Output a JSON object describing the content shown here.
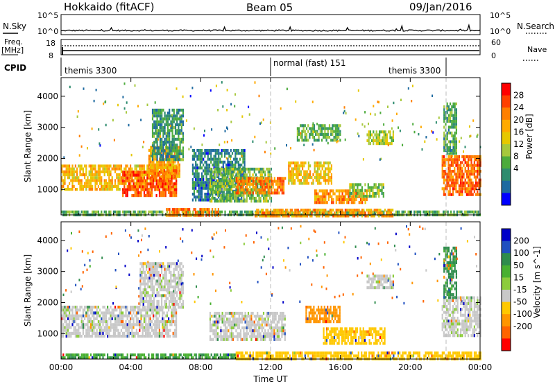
{
  "header": {
    "station": "Hokkaido (fitACF)",
    "beam": "Beam 05",
    "date": "09/Jan/2016"
  },
  "top_panels": {
    "nsky_label": "N.Sky",
    "nsearch_label": "N.Search",
    "count_ticks_left": [
      "10^5",
      "10^0"
    ],
    "count_ticks_right": [
      "10^5",
      "10^0"
    ],
    "freq_label_line1": "Freq.",
    "freq_label_line2": "[MHz]",
    "freq_ticks": [
      "18",
      "8"
    ],
    "nave_label": "Nave",
    "nave_ticks": [
      "60",
      "0"
    ],
    "cpid_label": "CPID",
    "cpid_segments": [
      {
        "label": "themis 3300",
        "start_hour": 0
      },
      {
        "label": "normal (fast) 151",
        "start_hour": 12
      },
      {
        "label": "themis 3300",
        "start_hour": 21.8
      }
    ]
  },
  "chart_data": [
    {
      "type": "heatmap",
      "title": "",
      "parameter": "Power",
      "xlabel": "Time UT",
      "ylabel": "Slant Range [km]",
      "colorbar_label": "Power [dB]",
      "colorbar_ticks": [
        "28",
        "24",
        "20",
        "16",
        "12",
        "8",
        "4"
      ],
      "colorbar_colors": [
        "#ff0000",
        "#ff4000",
        "#ff8000",
        "#ffaa00",
        "#e6c800",
        "#a6c83c",
        "#4cab3c",
        "#2e8c6e",
        "#1e6aa0",
        "#0000ff"
      ],
      "xlim": [
        0,
        24
      ],
      "ylim": [
        180,
        4600
      ],
      "x_ticks": [
        "00:00",
        "04:00",
        "08:00",
        "12:00",
        "16:00",
        "20:00",
        "00:00"
      ],
      "y_ticks": [
        "1000",
        "2000",
        "3000",
        "4000"
      ],
      "regions": [
        {
          "t0": 0.0,
          "t1": 6.6,
          "r0": 1000,
          "r1": 1800,
          "v": 20
        },
        {
          "t0": 3.5,
          "t1": 6.6,
          "r0": 800,
          "r1": 1600,
          "v": 26
        },
        {
          "t0": 5.0,
          "t1": 6.8,
          "r0": 1400,
          "r1": 2400,
          "v": 22
        },
        {
          "t0": 5.2,
          "t1": 7.0,
          "r0": 2000,
          "r1": 3600,
          "v": 10
        },
        {
          "t0": 7.5,
          "t1": 10.5,
          "r0": 700,
          "r1": 2300,
          "v": 8
        },
        {
          "t0": 8.5,
          "t1": 12.0,
          "r0": 600,
          "r1": 1700,
          "v": 13
        },
        {
          "t0": 10.0,
          "t1": 12.8,
          "r0": 900,
          "r1": 1400,
          "v": 24
        },
        {
          "t0": 13.0,
          "t1": 15.5,
          "r0": 1200,
          "r1": 1900,
          "v": 19
        },
        {
          "t0": 14.5,
          "t1": 17.5,
          "r0": 600,
          "r1": 1000,
          "v": 23
        },
        {
          "t0": 16.5,
          "t1": 18.5,
          "r0": 800,
          "r1": 1200,
          "v": 14
        },
        {
          "t0": 13.5,
          "t1": 16.0,
          "r0": 2600,
          "r1": 3100,
          "v": 12
        },
        {
          "t0": 17.5,
          "t1": 19.0,
          "r0": 2500,
          "r1": 2900,
          "v": 15
        },
        {
          "t0": 21.8,
          "t1": 24.0,
          "r0": 800,
          "r1": 2100,
          "v": 25
        },
        {
          "t0": 21.9,
          "t1": 22.6,
          "r0": 2200,
          "r1": 3800,
          "v": 11
        },
        {
          "t0": 0.0,
          "t1": 24.0,
          "r0": 180,
          "r1": 320,
          "v": 12
        },
        {
          "t0": 6.0,
          "t1": 9.0,
          "r0": 180,
          "r1": 400,
          "v": 24
        },
        {
          "t0": 11.0,
          "t1": 19.0,
          "r0": 180,
          "r1": 380,
          "v": 22
        }
      ]
    },
    {
      "type": "heatmap",
      "title": "",
      "parameter": "Velocity",
      "xlabel": "Time UT",
      "ylabel": "Slant Range [km]",
      "colorbar_label": "Velocity [m s^-1]",
      "colorbar_ticks": [
        "200",
        "100",
        "50",
        "15",
        "-15",
        "-50",
        "-100",
        "-200"
      ],
      "colorbar_colors": [
        "#0000c8",
        "#2050c0",
        "#2e8c4c",
        "#48b030",
        "#8ccc3c",
        "#c8c8c8",
        "#ffc800",
        "#ff9600",
        "#ff6400",
        "#ff0000"
      ],
      "xlim": [
        0,
        24
      ],
      "ylim": [
        180,
        4600
      ],
      "x_ticks": [
        "00:00",
        "04:00",
        "08:00",
        "12:00",
        "16:00",
        "20:00",
        "00:00"
      ],
      "y_ticks": [
        "1000",
        "2000",
        "3000",
        "4000"
      ],
      "regions": [
        {
          "t0": 0.0,
          "t1": 6.6,
          "r0": 900,
          "r1": 1900,
          "v": 0
        },
        {
          "t0": 4.5,
          "t1": 7.0,
          "r0": 1800,
          "r1": 3300,
          "v": 0
        },
        {
          "t0": 8.5,
          "t1": 12.8,
          "r0": 800,
          "r1": 1700,
          "v": 0
        },
        {
          "t0": 14.0,
          "t1": 16.0,
          "r0": 1400,
          "r1": 1900,
          "v": -60
        },
        {
          "t0": 15.0,
          "t1": 18.5,
          "r0": 700,
          "r1": 1200,
          "v": -40
        },
        {
          "t0": 17.5,
          "t1": 19.0,
          "r0": 2500,
          "r1": 2900,
          "v": 0
        },
        {
          "t0": 21.8,
          "t1": 24.0,
          "r0": 900,
          "r1": 2200,
          "v": 0
        },
        {
          "t0": 21.9,
          "t1": 22.6,
          "r0": 2200,
          "r1": 3800,
          "v": 40
        },
        {
          "t0": 0.0,
          "t1": 10.0,
          "r0": 180,
          "r1": 360,
          "v": 30
        },
        {
          "t0": 10.0,
          "t1": 24.0,
          "r0": 180,
          "r1": 420,
          "v": -40
        }
      ]
    }
  ]
}
